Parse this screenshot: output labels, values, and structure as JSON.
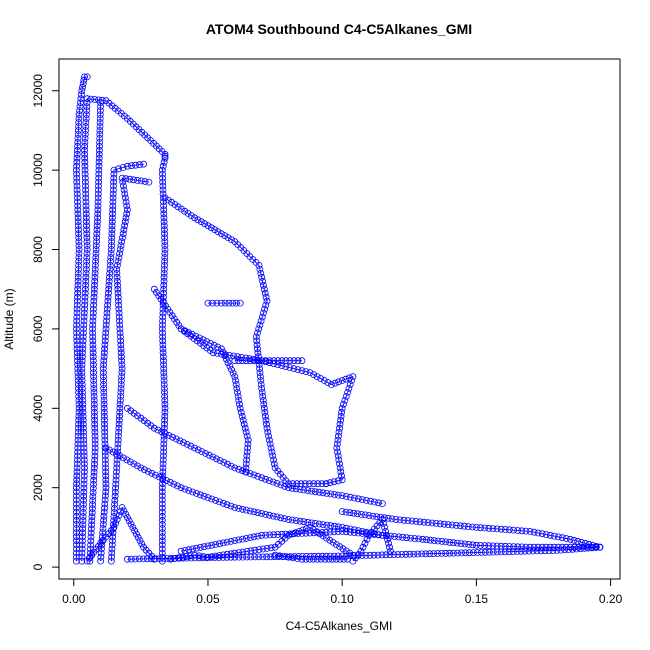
{
  "chart_data": {
    "type": "scatter",
    "title": "ATOM4 Southbound C4-C5Alkanes_GMI",
    "xlabel": "C4-C5Alkanes_GMI",
    "ylabel": "Altitude (m)",
    "xlim": [
      -0.0055,
      0.2035
    ],
    "ylim": [
      -300,
      12800
    ],
    "x_ticks": [
      0.0,
      0.05,
      0.1,
      0.15,
      0.2
    ],
    "x_tick_labels": [
      "0.00",
      "0.05",
      "0.10",
      "0.15",
      "0.20"
    ],
    "y_ticks": [
      0,
      2000,
      4000,
      6000,
      8000,
      10000,
      12000
    ],
    "y_tick_labels": [
      "0",
      "2000",
      "4000",
      "6000",
      "8000",
      "10000",
      "12000"
    ],
    "grid": false,
    "legend": "none",
    "marker": "open-circle",
    "color": "#0000ff",
    "series": [
      {
        "values": [
          [
            0.001,
            150
          ],
          [
            0.001,
            2000
          ],
          [
            0.002,
            4000
          ],
          [
            0.001,
            6000
          ],
          [
            0.002,
            8000
          ],
          [
            0.001,
            10000
          ],
          [
            0.002,
            11400
          ],
          [
            0.003,
            12000
          ],
          [
            0.004,
            12350
          ],
          [
            0.005,
            12350
          ]
        ]
      },
      {
        "values": [
          [
            0.003,
            150
          ],
          [
            0.004,
            2500
          ],
          [
            0.003,
            5000
          ],
          [
            0.005,
            8000
          ],
          [
            0.004,
            10500
          ],
          [
            0.005,
            11800
          ],
          [
            0.012,
            11750
          ],
          [
            0.02,
            11300
          ],
          [
            0.034,
            10400
          ],
          [
            0.034,
            10350
          ]
        ]
      },
      {
        "values": [
          [
            0.006,
            150
          ],
          [
            0.008,
            3000
          ],
          [
            0.007,
            6000
          ],
          [
            0.009,
            9000
          ],
          [
            0.01,
            11700
          ]
        ]
      },
      {
        "values": [
          [
            0.01,
            150
          ],
          [
            0.012,
            2000
          ],
          [
            0.011,
            5000
          ],
          [
            0.014,
            8000
          ],
          [
            0.015,
            10000
          ],
          [
            0.02,
            10100
          ],
          [
            0.026,
            10150
          ]
        ]
      },
      {
        "values": [
          [
            0.014,
            150
          ],
          [
            0.016,
            2500
          ],
          [
            0.018,
            5000
          ],
          [
            0.016,
            7500
          ],
          [
            0.02,
            9000
          ],
          [
            0.018,
            9800
          ],
          [
            0.028,
            9700
          ]
        ]
      },
      {
        "values": [
          [
            0.033,
            150
          ],
          [
            0.033,
            2000
          ],
          [
            0.034,
            4000
          ],
          [
            0.033,
            6000
          ],
          [
            0.034,
            8000
          ],
          [
            0.033,
            10000
          ],
          [
            0.034,
            10300
          ]
        ]
      },
      {
        "values": [
          [
            0.034,
            9300
          ],
          [
            0.045,
            8800
          ],
          [
            0.06,
            8200
          ],
          [
            0.069,
            7600
          ],
          [
            0.072,
            6700
          ],
          [
            0.068,
            5800
          ],
          [
            0.07,
            4500
          ],
          [
            0.072,
            3500
          ],
          [
            0.075,
            2500
          ],
          [
            0.08,
            2100
          ],
          [
            0.094,
            2100
          ]
        ]
      },
      {
        "values": [
          [
            0.05,
            6650
          ],
          [
            0.055,
            6650
          ],
          [
            0.062,
            6650
          ]
        ]
      },
      {
        "values": [
          [
            0.06,
            5200
          ],
          [
            0.07,
            5200
          ],
          [
            0.085,
            5200
          ]
        ]
      },
      {
        "values": [
          [
            0.03,
            7000
          ],
          [
            0.04,
            6000
          ],
          [
            0.055,
            5500
          ],
          [
            0.06,
            4800
          ],
          [
            0.062,
            4000
          ],
          [
            0.065,
            3200
          ],
          [
            0.064,
            2400
          ]
        ]
      },
      {
        "values": [
          [
            0.04,
            6000
          ],
          [
            0.052,
            5400
          ],
          [
            0.07,
            5200
          ],
          [
            0.088,
            4900
          ],
          [
            0.096,
            4600
          ],
          [
            0.104,
            4800
          ],
          [
            0.1,
            4000
          ],
          [
            0.098,
            3000
          ],
          [
            0.1,
            2200
          ],
          [
            0.094,
            2100
          ]
        ]
      },
      {
        "values": [
          [
            0.02,
            4000
          ],
          [
            0.03,
            3500
          ],
          [
            0.045,
            3000
          ],
          [
            0.06,
            2500
          ],
          [
            0.08,
            2000
          ],
          [
            0.1,
            1800
          ],
          [
            0.115,
            1600
          ]
        ]
      },
      {
        "values": [
          [
            0.012,
            3000
          ],
          [
            0.025,
            2500
          ],
          [
            0.04,
            2000
          ],
          [
            0.06,
            1500
          ],
          [
            0.08,
            1200
          ],
          [
            0.1,
            1000
          ],
          [
            0.115,
            800
          ]
        ]
      },
      {
        "values": [
          [
            0.04,
            400
          ],
          [
            0.07,
            800
          ],
          [
            0.1,
            900
          ],
          [
            0.13,
            700
          ],
          [
            0.15,
            550
          ],
          [
            0.17,
            500
          ],
          [
            0.185,
            500
          ],
          [
            0.196,
            500
          ]
        ]
      },
      {
        "values": [
          [
            0.1,
            1400
          ],
          [
            0.12,
            1200
          ],
          [
            0.15,
            1000
          ],
          [
            0.17,
            900
          ],
          [
            0.185,
            700
          ],
          [
            0.196,
            500
          ]
        ]
      },
      {
        "values": [
          [
            0.02,
            200
          ],
          [
            0.06,
            250
          ],
          [
            0.1,
            280
          ],
          [
            0.14,
            350
          ],
          [
            0.18,
            420
          ],
          [
            0.196,
            500
          ]
        ]
      },
      {
        "values": [
          [
            0.075,
            300
          ],
          [
            0.08,
            250
          ],
          [
            0.085,
            200
          ],
          [
            0.095,
            200
          ],
          [
            0.102,
            200
          ]
        ]
      },
      {
        "values": [
          [
            0.036,
            200
          ],
          [
            0.045,
            300
          ],
          [
            0.05,
            250
          ],
          [
            0.06,
            350
          ],
          [
            0.075,
            500
          ],
          [
            0.08,
            800
          ],
          [
            0.088,
            1000
          ],
          [
            0.104,
            300
          ]
        ]
      },
      {
        "values": [
          [
            0.104,
            150
          ],
          [
            0.107,
            400
          ],
          [
            0.11,
            800
          ],
          [
            0.115,
            1200
          ],
          [
            0.118,
            400
          ]
        ]
      },
      {
        "values": [
          [
            0.005,
            150
          ],
          [
            0.01,
            600
          ],
          [
            0.015,
            1000
          ],
          [
            0.018,
            1500
          ],
          [
            0.022,
            1000
          ],
          [
            0.026,
            500
          ],
          [
            0.03,
            200
          ]
        ]
      }
    ]
  }
}
